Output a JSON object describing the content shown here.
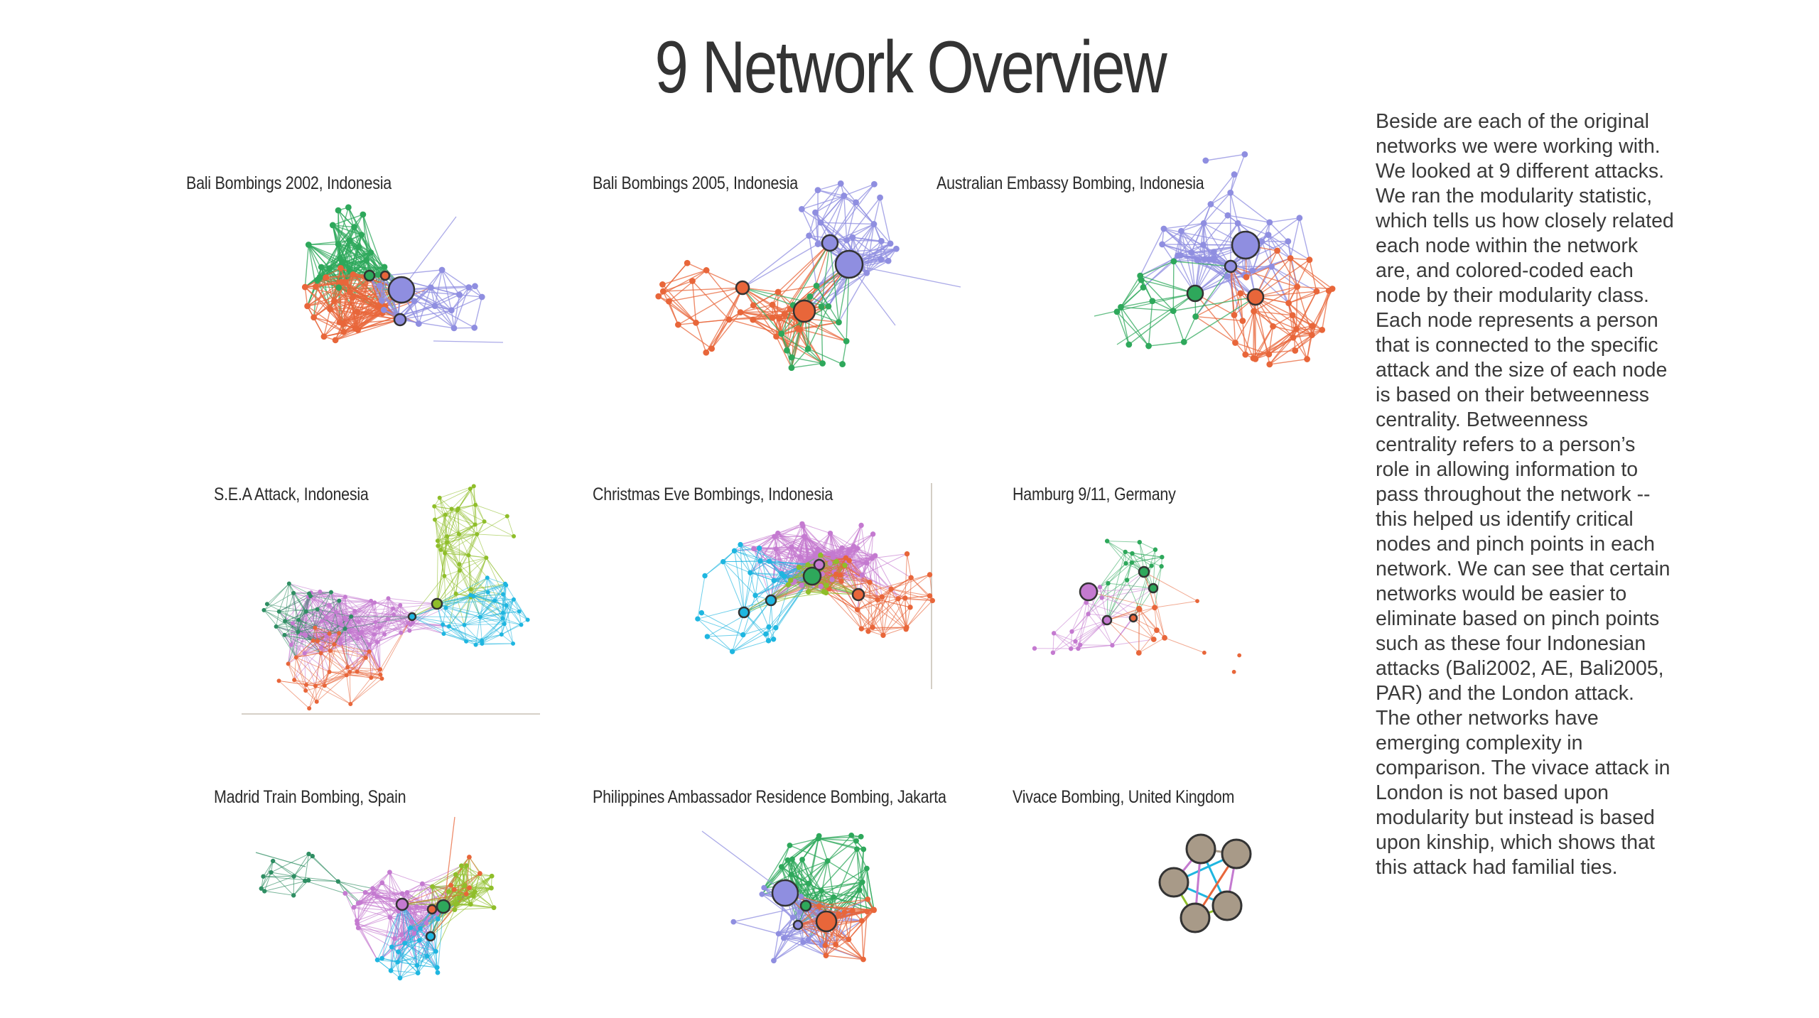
{
  "title": "9 Network Overview",
  "description": "Beside are each of the original networks we were working with. We looked at 9 different attacks. We ran the modularity statistic, which tells us how closely related each node within the network are, and colored-coded each node by their modularity class. Each node represents a person that is connected to the specific attack and the size of each node is based on their betweenness centrality. Betweenness centrality refers to a person’s role in allowing information to pass throughout the network -- this helped us identify critical nodes and pinch points in each network. We can see that certain networks would be easier to eliminate based on pinch points such as these four Indonesian attacks (Bali2002, AE, Bali2005, PAR) and the London attack. The other networks have emerging complexity in comparison. The vivace attack in London is not based upon modularity but instead is based upon kinship, which shows that this attack had familial ties.",
  "colors": {
    "purple": "#8f8ee0",
    "orange": "#e8663a",
    "green": "#2ea85b",
    "cyan": "#1fb6e0",
    "olive": "#8fbe2a",
    "pink": "#c47ad0",
    "teal": "#2f8e63",
    "taupe": "#a89a88"
  },
  "networks": [
    {
      "title": "Bali Bombings 2002, Indonesia"
    },
    {
      "title": "Bali Bombings 2005, Indonesia"
    },
    {
      "title": "Australian Embassy Bombing, Indonesia"
    },
    {
      "title": "S.E.A Attack, Indonesia"
    },
    {
      "title": "Christmas Eve Bombings, Indonesia"
    },
    {
      "title": "Hamburg 9/11, Germany"
    },
    {
      "title": "Madrid Train Bombing, Spain"
    },
    {
      "title": "Philippines Ambassador Residence Bombing, Jakarta"
    },
    {
      "title": "Vivace Bombing, United Kingdom"
    }
  ]
}
